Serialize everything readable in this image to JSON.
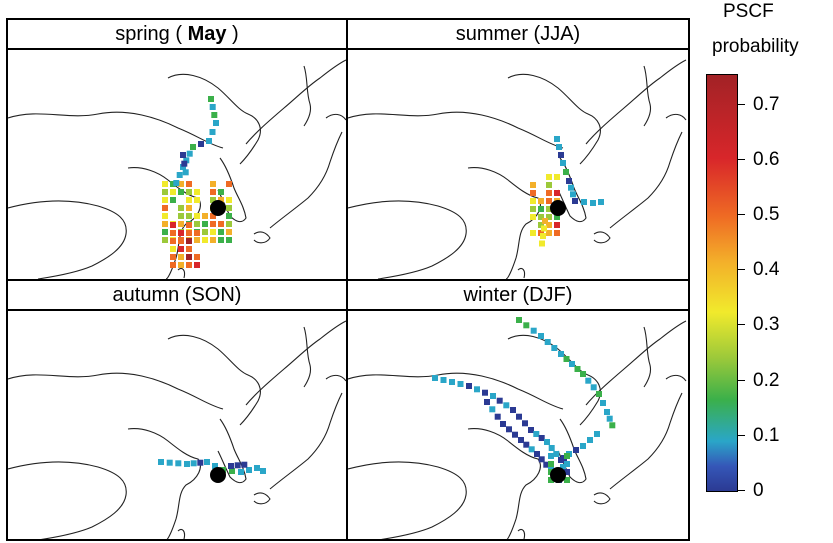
{
  "panels": {
    "spring": {
      "title_pre": "spring (",
      "title_bold": "May",
      "title_post": ")"
    },
    "summer": {
      "title": "summer (JJA)"
    },
    "autumn": {
      "title": "autumn (SON)"
    },
    "winter": {
      "title": "winter (DJF)"
    }
  },
  "legend": {
    "title_line1": "PSCF",
    "title_line2": "probability",
    "ticks": [
      "0",
      "0.1",
      "0.2",
      "0.3",
      "0.4",
      "0.5",
      "0.6",
      "0.7"
    ],
    "range": [
      0,
      0.75
    ],
    "colors": [
      "#2b3a93",
      "#2aa6c8",
      "#3bb04a",
      "#9cc93a",
      "#f1ea2c",
      "#f3b02a",
      "#ef6b24",
      "#d8262a",
      "#a22226"
    ]
  },
  "receptor_marker": "black filled circle",
  "map_region": "Northeast Asia (China, Korea, Japan)"
}
